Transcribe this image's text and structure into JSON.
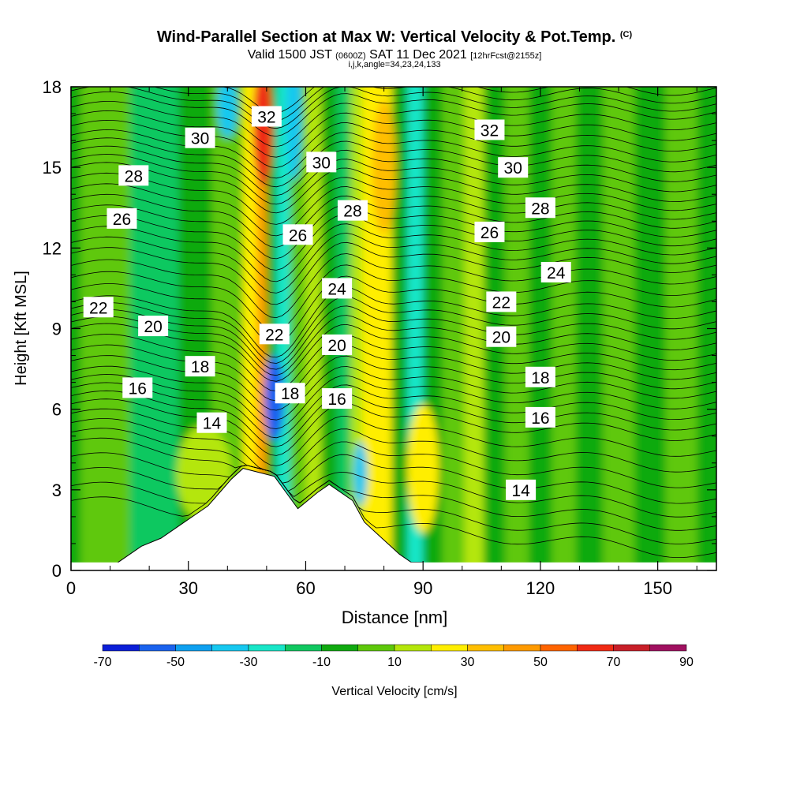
{
  "header": {
    "title": "Wind-Parallel Section at Max W: Vertical Velocity & Pot.Temp.",
    "copyright": "(C)",
    "valid_pre": "Valid 1500 JST",
    "valid_utc": "(0600Z)",
    "valid_date": "SAT 11 Dec 2021",
    "forecast": "[12hrFcst@2155z]",
    "indices": "i,j,k,angle=34,23,24,133"
  },
  "chart_data": {
    "type": "heatmap",
    "xlabel": "Distance [nm]",
    "ylabel": "Height [Kft MSL]",
    "xlim": [
      0,
      165
    ],
    "ylim": [
      0,
      18
    ],
    "x_ticks": [
      "0",
      "30",
      "60",
      "90",
      "120",
      "150"
    ],
    "y_ticks": [
      "0",
      "3",
      "6",
      "9",
      "12",
      "15",
      "18"
    ],
    "colorbar": {
      "label": "Vertical Velocity [cm/s]",
      "tick_labels": [
        "-70",
        "-50",
        "-30",
        "-10",
        "10",
        "30",
        "50",
        "70",
        "90"
      ],
      "levels": [
        -70,
        -60,
        -50,
        -40,
        -30,
        -20,
        -10,
        0,
        10,
        20,
        30,
        40,
        50,
        60,
        70,
        80,
        90
      ],
      "colors": [
        "#0b1ed8",
        "#1a62ee",
        "#0ea0f0",
        "#16c8f0",
        "#18e6c8",
        "#10c860",
        "#10aa10",
        "#5ec80a",
        "#b4e60a",
        "#ffee00",
        "#ffbe00",
        "#ff9a00",
        "#ff6400",
        "#f02a14",
        "#c81e28",
        "#a01060",
        "#6a0a8a"
      ]
    },
    "vertical_velocity_bands": [
      {
        "x": 1,
        "w": -10
      },
      {
        "x": 4,
        "w": 2
      },
      {
        "x": 12,
        "w": 0
      },
      {
        "x": 18,
        "w": -12
      },
      {
        "x": 25,
        "w": -14
      },
      {
        "x": 30,
        "w": -8
      },
      {
        "x": 34,
        "w": -6
      },
      {
        "x": 38,
        "w": 0
      },
      {
        "x": 42,
        "w": 4
      },
      {
        "x": 46,
        "w": 20
      },
      {
        "x": 49,
        "w": 40
      },
      {
        "x": 51,
        "w": -10
      },
      {
        "x": 54,
        "w": -28
      },
      {
        "x": 58,
        "w": 8
      },
      {
        "x": 62,
        "w": 10
      },
      {
        "x": 66,
        "w": -4
      },
      {
        "x": 70,
        "w": -14
      },
      {
        "x": 73,
        "w": 10
      },
      {
        "x": 76,
        "w": 26
      },
      {
        "x": 80,
        "w": 22
      },
      {
        "x": 84,
        "w": -8
      },
      {
        "x": 88,
        "w": -22
      },
      {
        "x": 92,
        "w": -4
      },
      {
        "x": 98,
        "w": 0
      },
      {
        "x": 103,
        "w": 12
      },
      {
        "x": 108,
        "w": -8
      },
      {
        "x": 114,
        "w": 0
      },
      {
        "x": 120,
        "w": -6
      },
      {
        "x": 126,
        "w": 4
      },
      {
        "x": 132,
        "w": -2
      },
      {
        "x": 140,
        "w": 4
      },
      {
        "x": 148,
        "w": -4
      },
      {
        "x": 156,
        "w": 2
      },
      {
        "x": 164,
        "w": -6
      }
    ],
    "vertical_velocity_cells": [
      {
        "x": 34,
        "y": 3.6,
        "rx": 7,
        "ry": 1.8,
        "w": 14
      },
      {
        "x": 90,
        "y": 3.8,
        "rx": 4,
        "ry": 2.4,
        "w": 26
      },
      {
        "x": 52,
        "y": 6.4,
        "rx": 2.5,
        "ry": 1.6,
        "w": -58
      },
      {
        "x": 74,
        "y": 3.6,
        "rx": 1.8,
        "ry": 1.2,
        "w": -40
      },
      {
        "x": 49,
        "y": 16.5,
        "rx": 2.5,
        "ry": 2.2,
        "w": 60
      },
      {
        "x": 57,
        "y": 17,
        "rx": 2,
        "ry": 2.5,
        "w": -36
      },
      {
        "x": 40,
        "y": 17.3,
        "rx": 2.5,
        "ry": 1.2,
        "w": -32
      },
      {
        "x": 80,
        "y": 15,
        "rx": 3,
        "ry": 2.5,
        "w": 38
      }
    ],
    "terrain_profile": [
      {
        "x": 12,
        "y": 0.3
      },
      {
        "x": 15,
        "y": 0.6
      },
      {
        "x": 18,
        "y": 0.9
      },
      {
        "x": 23,
        "y": 1.2
      },
      {
        "x": 26,
        "y": 1.5
      },
      {
        "x": 29,
        "y": 1.8
      },
      {
        "x": 32,
        "y": 2.1
      },
      {
        "x": 35,
        "y": 2.4
      },
      {
        "x": 38,
        "y": 2.9
      },
      {
        "x": 41,
        "y": 3.4
      },
      {
        "x": 44,
        "y": 3.8
      },
      {
        "x": 52,
        "y": 3.5
      },
      {
        "x": 55,
        "y": 2.9
      },
      {
        "x": 58,
        "y": 2.3
      },
      {
        "x": 63,
        "y": 2.9
      },
      {
        "x": 66,
        "y": 3.2
      },
      {
        "x": 72,
        "y": 2.6
      },
      {
        "x": 75,
        "y": 1.8
      },
      {
        "x": 78,
        "y": 1.4
      },
      {
        "x": 81,
        "y": 1.0
      },
      {
        "x": 84,
        "y": 0.6
      },
      {
        "x": 87,
        "y": 0.3
      },
      {
        "x": 90,
        "y": 0.3
      }
    ],
    "theta_contours": [
      {
        "label": "14",
        "y_left": 4.8,
        "y_right": 2.6,
        "dip": 1.6,
        "label_x": 36,
        "label_y": 5.5,
        "label2_x": 115,
        "label2_y": 3.0
      },
      {
        "label": "16",
        "y_left": 6.2,
        "y_right": 5.0,
        "dip": 1.8,
        "label_x": 17,
        "label_y": 6.8,
        "label2_x": 68,
        "label2_y": 6.4,
        "label3_x": 120,
        "label3_y": 5.7
      },
      {
        "label": "18",
        "y_left": 7.4,
        "y_right": 6.6,
        "dip": 1.8,
        "label_x": 33,
        "label_y": 7.6,
        "label2_x": 56,
        "label2_y": 6.6,
        "label3_x": 120,
        "label3_y": 7.2
      },
      {
        "label": "20",
        "y_left": 9.0,
        "y_right": 8.0,
        "dip": 1.9,
        "label_x": 21,
        "label_y": 9.1,
        "label2_x": 68,
        "label2_y": 8.4,
        "label3_x": 110,
        "label3_y": 8.7
      },
      {
        "label": "22",
        "y_left": 10.0,
        "y_right": 9.6,
        "dip": 2.2,
        "label_x": 7,
        "label_y": 9.8,
        "label2_x": 52,
        "label2_y": 8.8,
        "label3_x": 110,
        "label3_y": 10.0
      },
      {
        "label": "24",
        "y_left": 11.8,
        "y_right": 11.3,
        "dip": 2.0,
        "label_x": 68,
        "label_y": 10.5,
        "label2_x": 124,
        "label2_y": 11.1
      },
      {
        "label": "26",
        "y_left": 13.4,
        "y_right": 12.6,
        "dip": 1.8,
        "label_x": 13,
        "label_y": 13.1,
        "label2_x": 58,
        "label2_y": 12.5,
        "label3_x": 107,
        "label3_y": 12.6
      },
      {
        "label": "28",
        "y_left": 15.0,
        "y_right": 13.9,
        "dip": 1.6,
        "label_x": 16,
        "label_y": 14.7,
        "label2_x": 72,
        "label2_y": 13.4,
        "label3_x": 120,
        "label3_y": 13.5
      },
      {
        "label": "30",
        "y_left": 16.2,
        "y_right": 15.4,
        "dip": 1.6,
        "label_x": 33,
        "label_y": 16.1,
        "label2_x": 64,
        "label2_y": 15.2,
        "label3_x": 113,
        "label3_y": 15.0
      },
      {
        "label": "32",
        "y_left": 17.6,
        "y_right": 17.0,
        "dip": 1.5,
        "label_x": 50,
        "label_y": 16.9,
        "label2_x": 107,
        "label2_y": 16.4
      }
    ]
  }
}
